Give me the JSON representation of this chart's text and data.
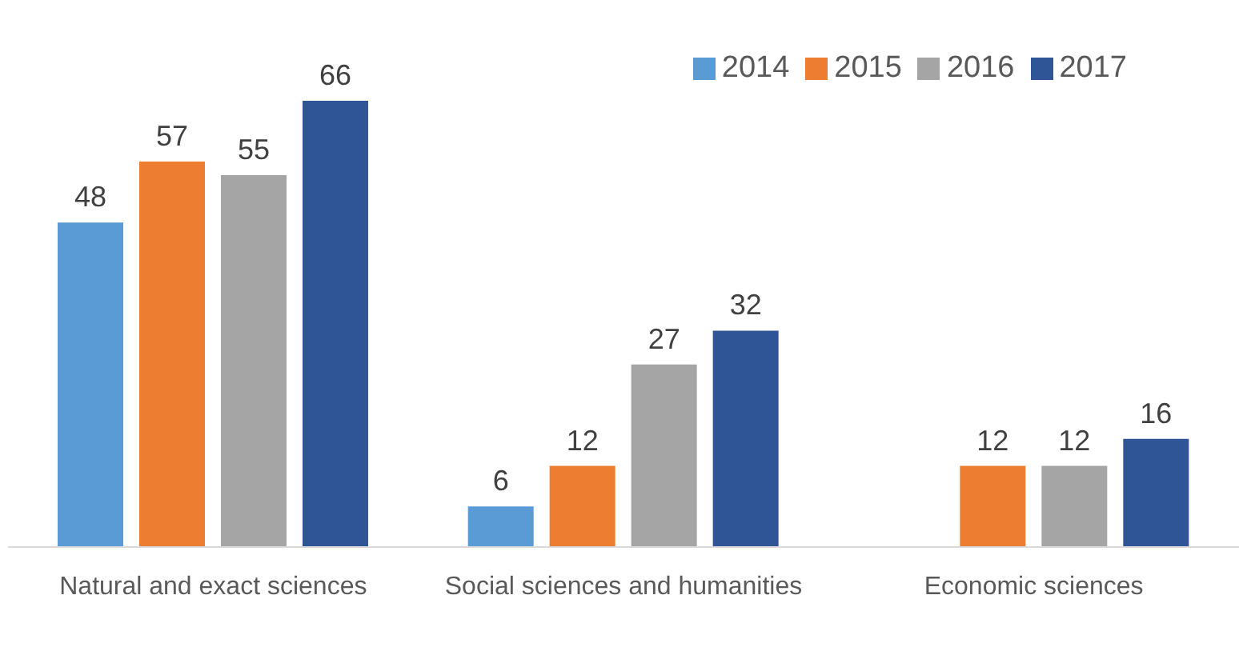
{
  "chart_data": {
    "type": "bar",
    "categories": [
      "Natural and exact sciences",
      "Social sciences and humanities",
      "Economic sciences"
    ],
    "series": [
      {
        "name": "2014",
        "color": "#5b9bd5",
        "values": [
          48,
          6,
          null
        ]
      },
      {
        "name": "2015",
        "color": "#ed7d31",
        "values": [
          57,
          12,
          12
        ]
      },
      {
        "name": "2016",
        "color": "#a5a5a5",
        "values": [
          55,
          27,
          12
        ]
      },
      {
        "name": "2017",
        "color": "#2f5597",
        "values": [
          66,
          32,
          16
        ]
      }
    ],
    "data_labels": true,
    "legend": "top right",
    "grid": false
  }
}
